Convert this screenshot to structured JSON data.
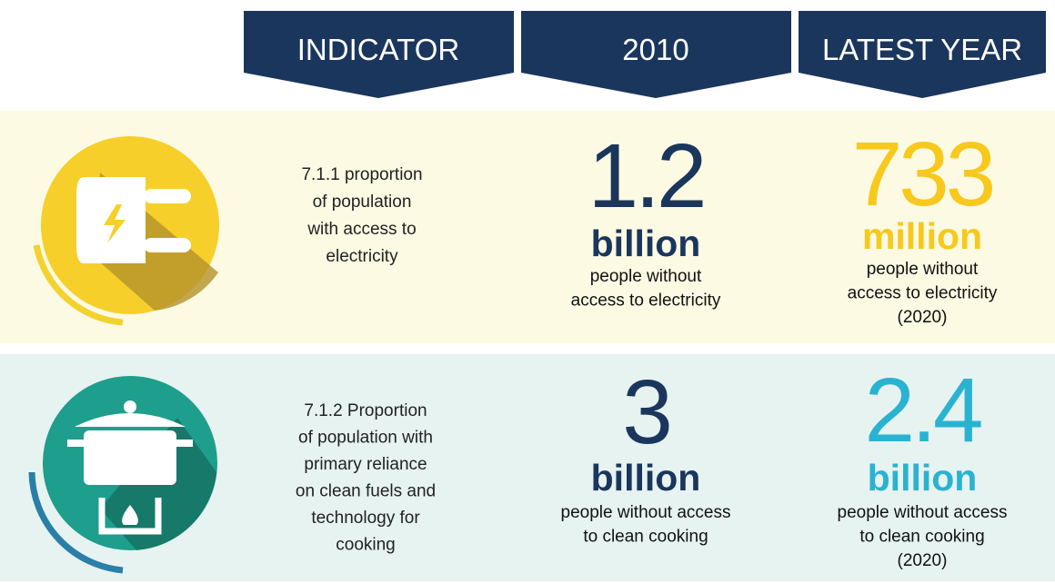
{
  "header": [
    "INDICATOR",
    "2010",
    "LATEST YEAR"
  ],
  "rows": [
    {
      "indicator": [
        "7.1.1 proportion",
        "of population",
        "with access to",
        "electricity"
      ],
      "baseline": {
        "number": "1.2",
        "unit": "billion",
        "description": [
          "people without",
          "access to electricity"
        ]
      },
      "latest": {
        "number": "733",
        "unit": "million",
        "description": [
          "people without",
          "access to electricity",
          "(2020)"
        ]
      }
    },
    {
      "indicator": [
        "7.1.2 Proportion",
        "of population with",
        "primary reliance",
        "on clean fuels and",
        "technology for",
        "cooking"
      ],
      "baseline": {
        "number": "3",
        "unit": "billion",
        "description": [
          "people without access",
          "to clean cooking"
        ]
      },
      "latest": {
        "number": "2.4",
        "unit": "billion",
        "description": [
          "people without access",
          "to clean cooking",
          "(2020)"
        ]
      }
    }
  ]
}
